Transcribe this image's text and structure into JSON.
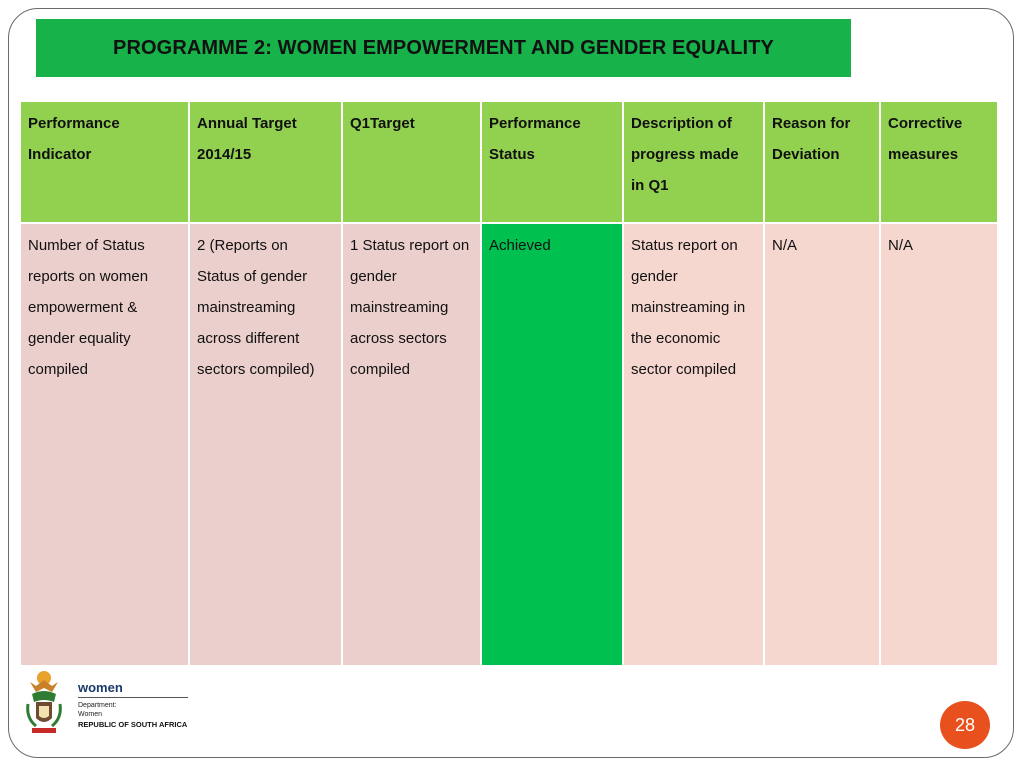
{
  "slide": {
    "title": "PROGRAMME 2: WOMEN EMPOWERMENT AND GENDER EQUALITY",
    "page_number": "28"
  },
  "table": {
    "headers": [
      "Performance Indicator",
      "Annual Target 2014/15",
      "Q1Target",
      "Performance Status",
      "Description of progress made in Q1",
      "Reason for Deviation",
      "Corrective measures"
    ],
    "rows": [
      [
        "Number of Status reports on women empowerment & gender  equality compiled",
        "2 (Reports on Status of gender mainstreaming across different sectors compiled)",
        "1 Status report on gender mainstreaming across sectors compiled",
        "Achieved",
        "Status report on gender mainstreaming in the economic sector compiled",
        "N/A",
        "N/A"
      ]
    ]
  },
  "logo": {
    "brand": "women",
    "dept_line1": "Department:",
    "dept_line2": "Women",
    "republic": "REPUBLIC OF SOUTH AFRICA",
    "icon": "coat-of-arms-icon"
  },
  "colors": {
    "title_bar": "#17b24a",
    "header_bg": "#92d050",
    "achieved_bg": "#00c050",
    "cell_pink_1": "#ebcfcd",
    "cell_pink_2": "#f6d7d0",
    "page_badge": "#e8501e"
  }
}
